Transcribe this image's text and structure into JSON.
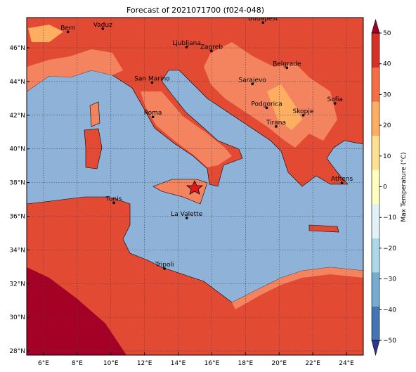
{
  "map": {
    "title": "Forecast of 2021071700 (f024-048)",
    "xlim": [
      5,
      25
    ],
    "ylim": [
      27.75,
      47.8
    ],
    "xticks": [
      {
        "value": 6,
        "label": "6°E"
      },
      {
        "value": 8,
        "label": "8°E"
      },
      {
        "value": 10,
        "label": "10°E"
      },
      {
        "value": 12,
        "label": "12°E"
      },
      {
        "value": 14,
        "label": "14°E"
      },
      {
        "value": 16,
        "label": "16°E"
      },
      {
        "value": 18,
        "label": "18°E"
      },
      {
        "value": 20,
        "label": "20°E"
      },
      {
        "value": 22,
        "label": "22°E"
      },
      {
        "value": 24,
        "label": "24°E"
      }
    ],
    "yticks": [
      {
        "value": 28,
        "label": "28°N"
      },
      {
        "value": 30,
        "label": "30°N"
      },
      {
        "value": 32,
        "label": "32°N"
      },
      {
        "value": 34,
        "label": "34°N"
      },
      {
        "value": 36,
        "label": "36°N"
      },
      {
        "value": 38,
        "label": "38°N"
      },
      {
        "value": 40,
        "label": "40°N"
      },
      {
        "value": 42,
        "label": "42°N"
      },
      {
        "value": 44,
        "label": "44°N"
      },
      {
        "value": 46,
        "label": "46°N"
      }
    ],
    "grid": true,
    "cities": [
      {
        "name": "Bern",
        "lon": 7.45,
        "lat": 46.95
      },
      {
        "name": "Vaduz",
        "lon": 9.52,
        "lat": 47.14
      },
      {
        "name": "Budapest",
        "lon": 19.04,
        "lat": 47.5
      },
      {
        "name": "Ljubljana",
        "lon": 14.5,
        "lat": 46.05
      },
      {
        "name": "Zagreb",
        "lon": 15.98,
        "lat": 45.81
      },
      {
        "name": "San Marino",
        "lon": 12.45,
        "lat": 43.94
      },
      {
        "name": "Sarajevo",
        "lon": 18.41,
        "lat": 43.86
      },
      {
        "name": "Belgrade",
        "lon": 20.46,
        "lat": 44.82
      },
      {
        "name": "Roma",
        "lon": 12.5,
        "lat": 41.9
      },
      {
        "name": "Podgorica",
        "lon": 19.26,
        "lat": 42.44
      },
      {
        "name": "Skopje",
        "lon": 21.43,
        "lat": 42.0
      },
      {
        "name": "Sofia",
        "lon": 23.32,
        "lat": 42.7
      },
      {
        "name": "Tirana",
        "lon": 19.82,
        "lat": 41.33
      },
      {
        "name": "Athens",
        "lon": 23.73,
        "lat": 37.98
      },
      {
        "name": "Tunis",
        "lon": 10.18,
        "lat": 36.8
      },
      {
        "name": "La Valette",
        "lon": 14.51,
        "lat": 35.9
      },
      {
        "name": "Tripoli",
        "lon": 13.19,
        "lat": 32.89
      }
    ],
    "colorbar": {
      "label": "Max Temperature (°C)",
      "lim": [
        -50,
        50
      ],
      "ticks": [
        {
          "value": -50,
          "label": "−50"
        },
        {
          "value": -40,
          "label": "−40"
        },
        {
          "value": -30,
          "label": "−30"
        },
        {
          "value": -20,
          "label": "−20"
        },
        {
          "value": -10,
          "label": "−10"
        },
        0,
        10,
        20,
        30,
        40,
        50
      ],
      "colors": [
        "#313695",
        "#4575b4",
        "#74add1",
        "#abd9e9",
        "#e0f3f8",
        "#ffffbf",
        "#fee090",
        "#fdae61",
        "#f46d43",
        "#d73027",
        "#a50026"
      ]
    }
  }
}
